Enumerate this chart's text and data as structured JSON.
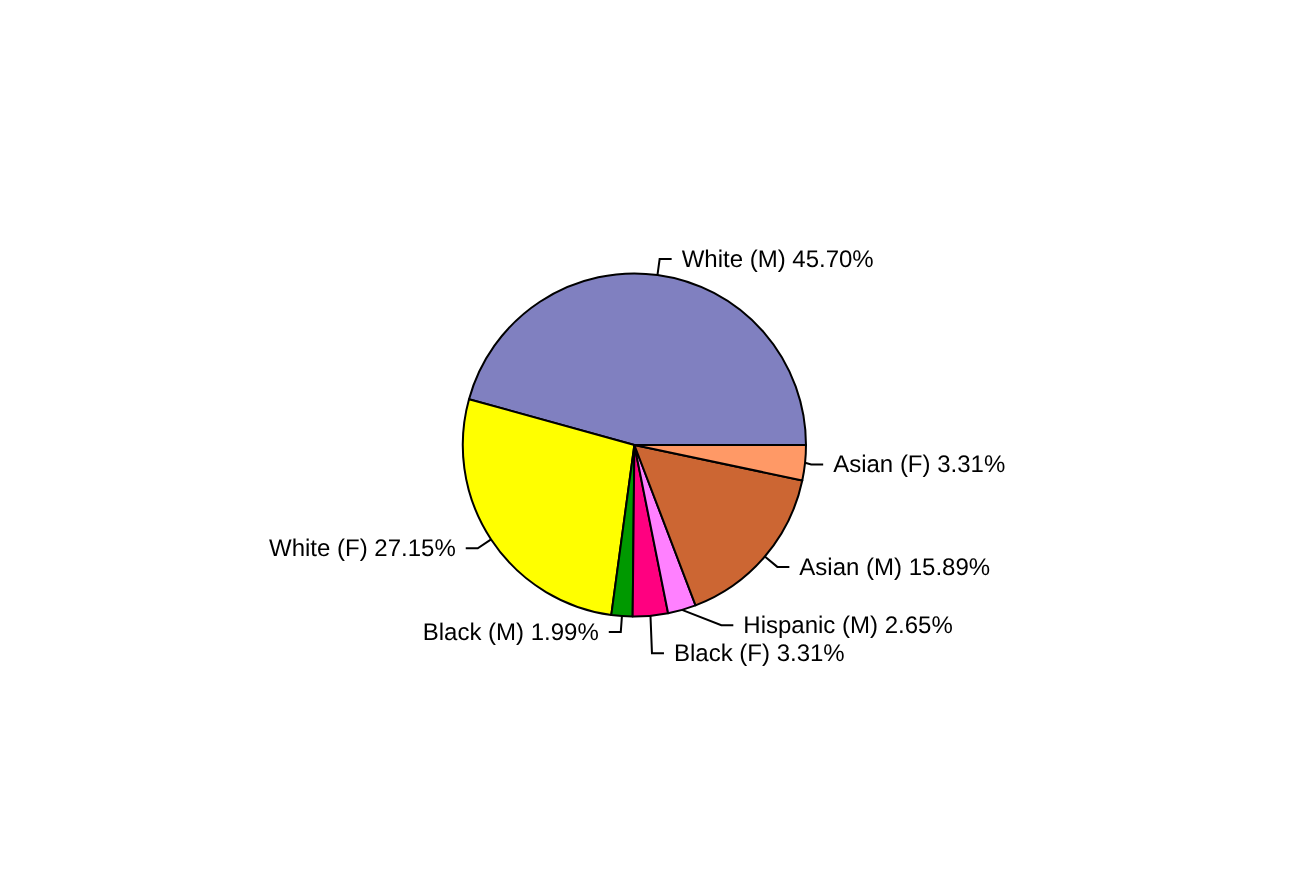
{
  "chart_data": {
    "type": "pie",
    "categories": [
      "White (M)",
      "White (F)",
      "Black (M)",
      "Black (F)",
      "Hispanic (M)",
      "Asian (M)",
      "Asian (F)"
    ],
    "values": [
      45.7,
      27.15,
      1.99,
      3.31,
      2.65,
      15.89,
      3.31
    ],
    "value_labels": [
      "45.70%",
      "27.15%",
      "1.99%",
      "3.31%",
      "2.65%",
      "15.89%",
      "3.31%"
    ],
    "colors": [
      "#8080c0",
      "#ffff00",
      "#009900",
      "#ff0080",
      "#ff80ff",
      "#cc6633",
      "#ff9966"
    ],
    "legend": false
  }
}
